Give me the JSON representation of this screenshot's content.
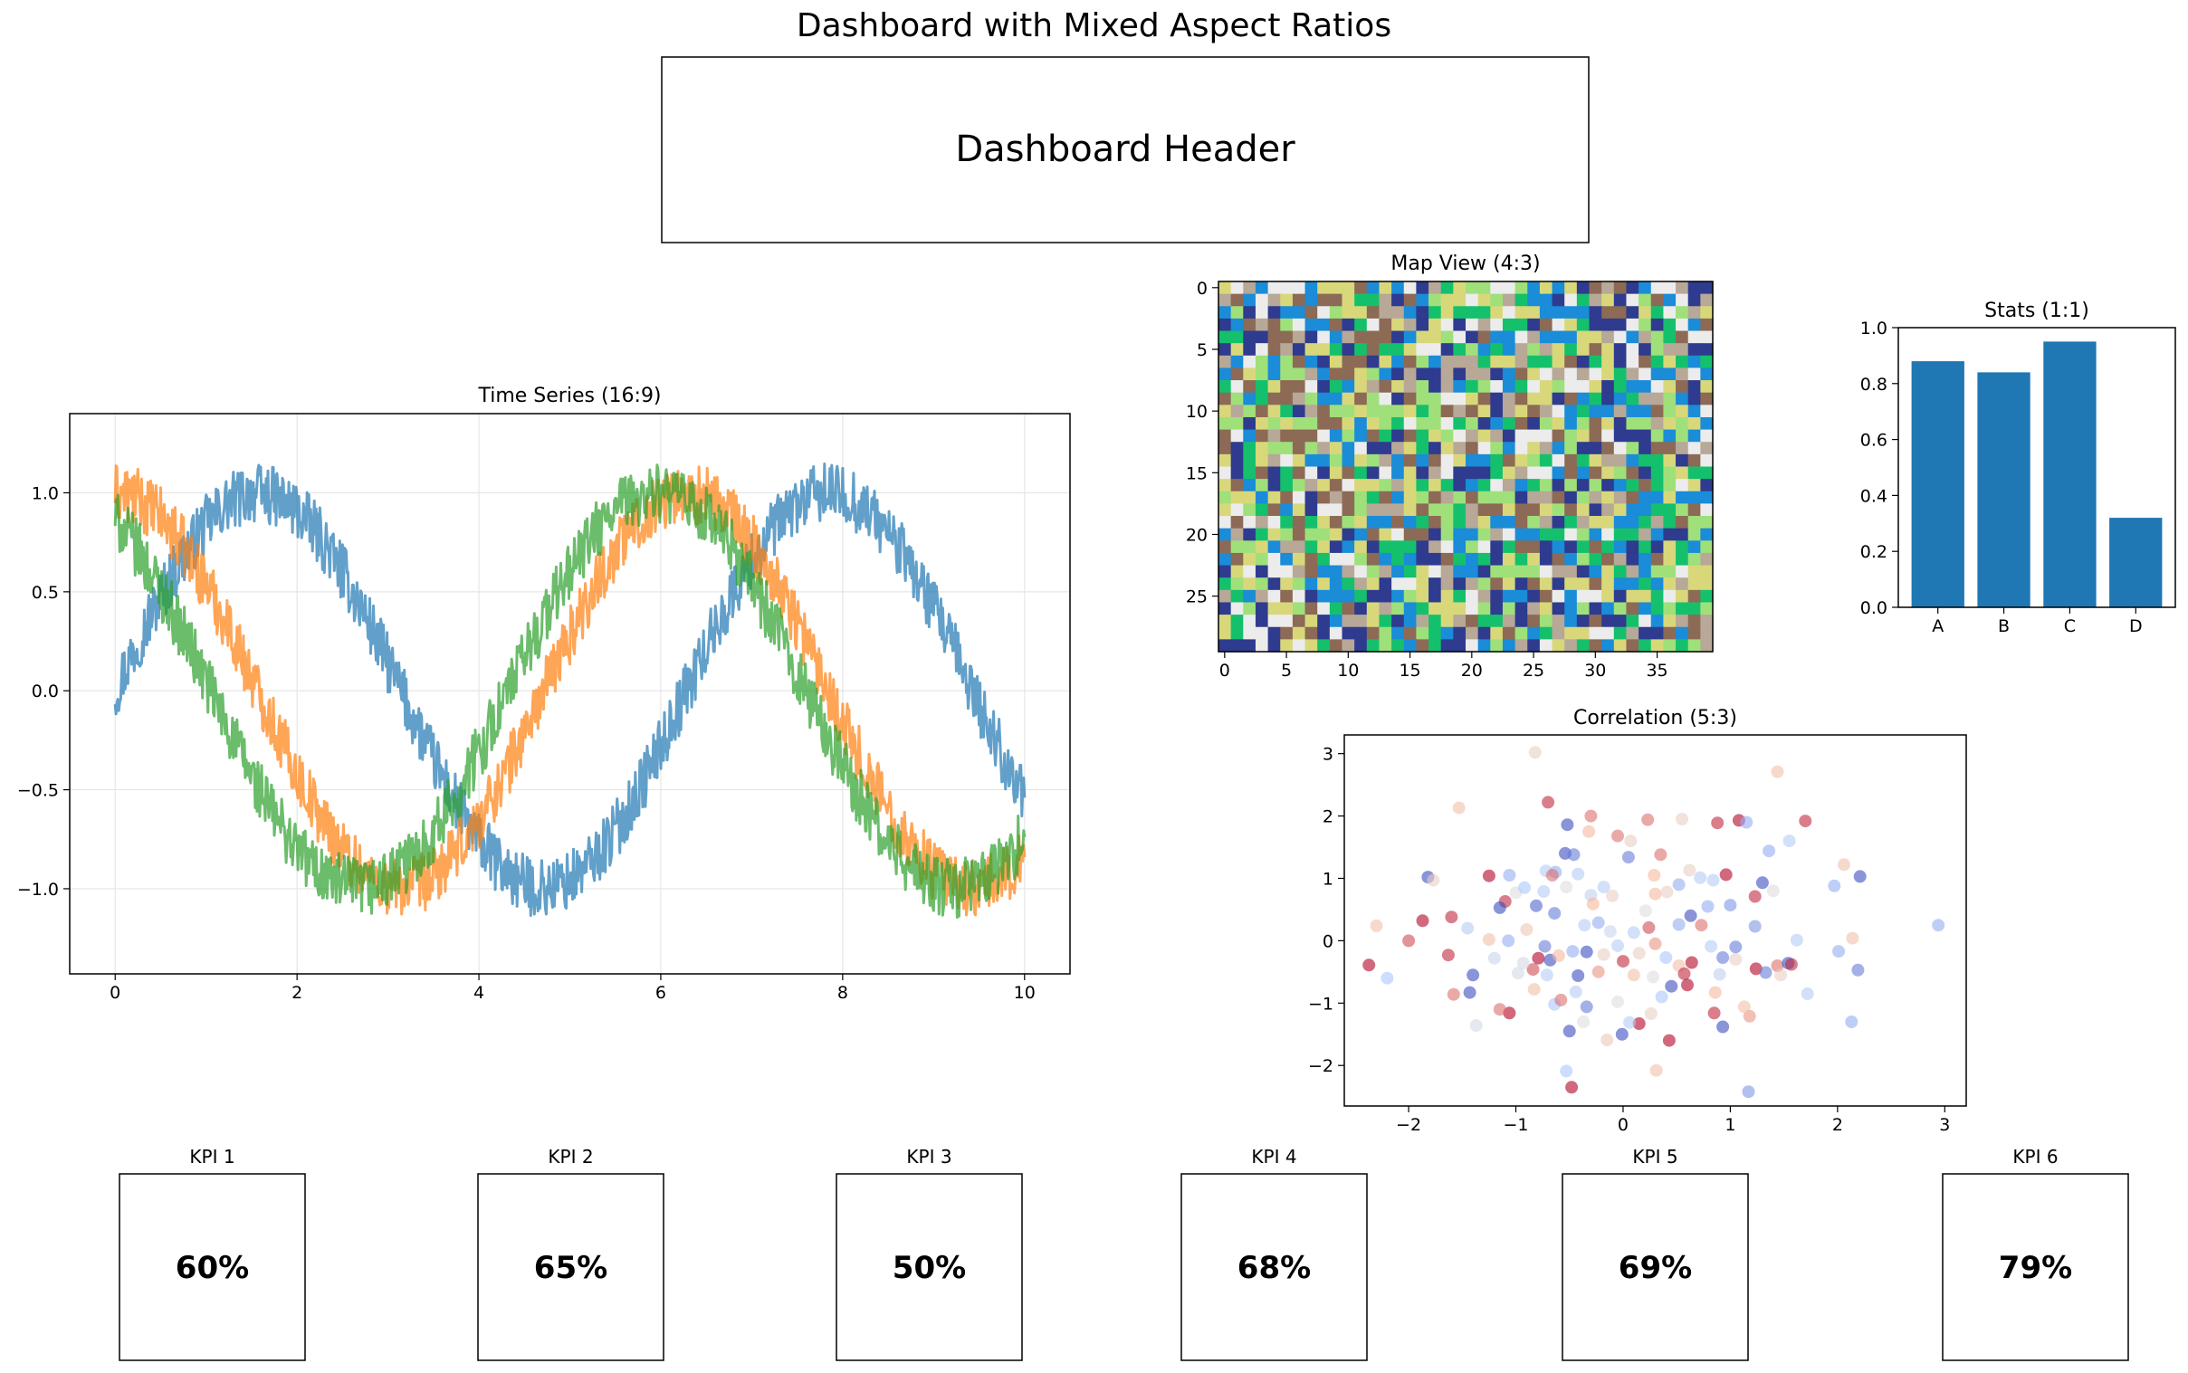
{
  "page_title": "Dashboard with Mixed Aspect Ratios",
  "header_text": "Dashboard Header",
  "colors": {
    "series": [
      "#1f77b4",
      "#ff7f0e",
      "#2ca02c"
    ],
    "bar": "#1f77b4",
    "grid": "#e6e6e6",
    "frame": "#000000",
    "heatmap_palette": [
      "#2e3b8f",
      "#1a8cd8",
      "#15c06c",
      "#9fe07a",
      "#d8d87a",
      "#8c6a55",
      "#b7a897",
      "#ececec"
    ],
    "scatter_colormap": [
      "#3b4cc0",
      "#aac7fd",
      "#dddddd",
      "#f7b89c",
      "#b40426"
    ]
  },
  "chart_data": [
    {
      "id": "time_series",
      "type": "line",
      "title": "Time Series (16:9)",
      "xlim": [
        -0.5,
        10.5
      ],
      "ylim": [
        -1.43,
        1.4
      ],
      "xticks": [
        0,
        2,
        4,
        6,
        8,
        10
      ],
      "yticks": [
        -1.0,
        -0.5,
        0.0,
        0.5,
        1.0
      ],
      "ytick_labels": [
        "−1.0",
        "−0.5",
        "0.0",
        "0.5",
        "1.0"
      ],
      "grid": true,
      "x": [
        0,
        0.25,
        0.5,
        0.75,
        1,
        1.25,
        1.5,
        1.75,
        2,
        2.25,
        2.5,
        2.75,
        3,
        3.25,
        3.5,
        3.75,
        4,
        4.25,
        4.5,
        4.75,
        5,
        5.25,
        5.5,
        5.75,
        6,
        6.25,
        6.5,
        6.75,
        7,
        7.25,
        7.5,
        7.75,
        8,
        8.25,
        8.5,
        8.75,
        9,
        9.25,
        9.5,
        9.75,
        10
      ],
      "series": [
        {
          "values": [
            0.0,
            0.25,
            0.48,
            0.68,
            0.84,
            0.95,
            1.0,
            0.98,
            0.91,
            0.78,
            0.6,
            0.38,
            0.14,
            -0.11,
            -0.35,
            -0.57,
            -0.76,
            -0.9,
            -0.98,
            -1.0,
            -0.96,
            -0.86,
            -0.71,
            -0.51,
            -0.28,
            -0.03,
            0.22,
            0.45,
            0.66,
            0.82,
            0.94,
            1.0,
            0.99,
            0.92,
            0.8,
            0.63,
            0.41,
            0.18,
            -0.08,
            -0.32,
            -0.54
          ],
          "noise": 0.1,
          "alpha": 0.7
        },
        {
          "values": [
            1.0,
            0.97,
            0.88,
            0.73,
            0.54,
            0.32,
            0.07,
            -0.18,
            -0.42,
            -0.63,
            -0.8,
            -0.92,
            -0.99,
            -0.99,
            -0.94,
            -0.82,
            -0.65,
            -0.45,
            -0.21,
            0.04,
            0.28,
            0.51,
            0.71,
            0.86,
            0.96,
            1.0,
            0.98,
            0.89,
            0.75,
            0.57,
            0.35,
            0.1,
            -0.15,
            -0.39,
            -0.6,
            -0.78,
            -0.91,
            -0.98,
            -1.0,
            -0.95,
            -0.84
          ],
          "noise": 0.1,
          "alpha": 0.7
        },
        {
          "values": [
            0.87,
            0.71,
            0.51,
            0.29,
            0.05,
            -0.2,
            -0.43,
            -0.63,
            -0.8,
            -0.92,
            -0.98,
            -1.0,
            -0.96,
            -0.86,
            -0.72,
            -0.53,
            -0.31,
            -0.07,
            0.17,
            0.4,
            0.61,
            0.78,
            0.91,
            0.98,
            1.0,
            0.96,
            0.88,
            0.74,
            0.55,
            0.33,
            0.09,
            -0.15,
            -0.38,
            -0.59,
            -0.77,
            -0.9,
            -0.98,
            -1.0,
            -0.97,
            -0.88,
            -0.74
          ],
          "noise": 0.1,
          "alpha": 0.7
        }
      ]
    },
    {
      "id": "map_view",
      "type": "heatmap",
      "title": "Map View (4:3)",
      "rows": 30,
      "cols": 40,
      "xticks": [
        0,
        5,
        10,
        15,
        20,
        25,
        30,
        35
      ],
      "yticks": [
        0,
        5,
        10,
        15,
        20,
        25
      ]
    },
    {
      "id": "stats",
      "type": "bar",
      "title": "Stats (1:1)",
      "categories": [
        "A",
        "B",
        "C",
        "D"
      ],
      "values": [
        0.88,
        0.84,
        0.95,
        0.32
      ],
      "ylim": [
        0,
        1.0
      ],
      "yticks": [
        "0.0",
        "0.2",
        "0.4",
        "0.6",
        "0.8",
        "1.0"
      ]
    },
    {
      "id": "correlation",
      "type": "scatter",
      "title": "Correlation (5:3)",
      "xlim": [
        -2.6,
        3.2
      ],
      "ylim": [
        -2.65,
        3.3
      ],
      "xticks": [
        -2,
        -1,
        0,
        1,
        2,
        3
      ],
      "xtick_labels": [
        "−2",
        "−1",
        "0",
        "1",
        "2",
        "3"
      ],
      "yticks": [
        -2,
        -1,
        0,
        1,
        2,
        3
      ],
      "ytick_labels": [
        "−2",
        "−1",
        "0",
        "1",
        "2",
        "3"
      ],
      "points": [
        [
          -0.82,
          3.02,
          0.6
        ],
        [
          1.44,
          2.71,
          0.7
        ],
        [
          -1.53,
          2.13,
          0.7
        ],
        [
          -0.7,
          2.22,
          0.95
        ],
        [
          -0.3,
          2.0,
          0.85
        ],
        [
          0.23,
          1.94,
          0.85
        ],
        [
          0.55,
          1.95,
          0.6
        ],
        [
          1.08,
          1.93,
          1.0
        ],
        [
          0.88,
          1.89,
          0.95
        ],
        [
          1.15,
          1.9,
          0.2
        ],
        [
          1.7,
          1.92,
          0.95
        ],
        [
          -0.32,
          1.75,
          0.75
        ],
        [
          -0.52,
          1.86,
          0.0
        ],
        [
          -0.05,
          1.68,
          0.85
        ],
        [
          0.07,
          1.6,
          0.6
        ],
        [
          1.55,
          1.6,
          0.3
        ],
        [
          1.36,
          1.44,
          0.2
        ],
        [
          2.06,
          1.22,
          0.7
        ],
        [
          2.21,
          1.03,
          0.0
        ],
        [
          1.97,
          0.88,
          0.2
        ],
        [
          -1.82,
          1.02,
          0.0
        ],
        [
          -1.77,
          0.97,
          0.6
        ],
        [
          -1.25,
          1.04,
          1.0
        ],
        [
          -1.06,
          1.05,
          0.2
        ],
        [
          -0.72,
          1.12,
          0.3
        ],
        [
          -0.54,
          1.4,
          0.0
        ],
        [
          -0.46,
          1.38,
          0.1
        ],
        [
          -0.63,
          1.1,
          0.2
        ],
        [
          -0.42,
          1.07,
          0.3
        ],
        [
          -0.66,
          1.05,
          0.85
        ],
        [
          0.05,
          1.34,
          0.1
        ],
        [
          0.35,
          1.38,
          0.85
        ],
        [
          0.29,
          1.05,
          0.75
        ],
        [
          0.52,
          0.9,
          0.2
        ],
        [
          0.84,
          0.97,
          0.3
        ],
        [
          0.62,
          1.13,
          0.6
        ],
        [
          0.96,
          1.06,
          1.0
        ],
        [
          0.72,
          1.01,
          0.3
        ],
        [
          1.3,
          0.93,
          0.0
        ],
        [
          1.4,
          0.8,
          0.5
        ],
        [
          1.23,
          0.71,
          0.95
        ],
        [
          -1.0,
          0.77,
          0.5
        ],
        [
          -0.92,
          0.85,
          0.25
        ],
        [
          -0.74,
          0.79,
          0.3
        ],
        [
          -0.53,
          0.86,
          0.5
        ],
        [
          -0.18,
          0.86,
          0.3
        ],
        [
          -0.1,
          0.72,
          0.6
        ],
        [
          0.3,
          0.75,
          0.75
        ],
        [
          0.41,
          0.78,
          0.6
        ],
        [
          1.0,
          0.57,
          0.15
        ],
        [
          0.21,
          0.48,
          0.5
        ],
        [
          -1.1,
          0.63,
          0.95
        ],
        [
          -1.15,
          0.53,
          0.0
        ],
        [
          -0.3,
          0.73,
          0.35
        ],
        [
          -1.6,
          0.38,
          0.95
        ],
        [
          -1.45,
          0.2,
          0.3
        ],
        [
          -1.87,
          0.32,
          1.0
        ],
        [
          -2.0,
          0.0,
          0.9
        ],
        [
          -2.3,
          0.24,
          0.7
        ],
        [
          -2.2,
          -0.6,
          0.25
        ],
        [
          -2.37,
          -0.39,
          1.0
        ],
        [
          -1.4,
          -0.55,
          0.0
        ],
        [
          -1.58,
          -0.86,
          0.85
        ],
        [
          -1.43,
          -0.83,
          0.0
        ],
        [
          -1.63,
          -0.23,
          0.95
        ],
        [
          -1.25,
          0.02,
          0.7
        ],
        [
          -1.07,
          0.0,
          0.2
        ],
        [
          -1.2,
          -0.28,
          0.4
        ],
        [
          -0.98,
          -0.52,
          0.45
        ],
        [
          -0.84,
          -0.46,
          0.9
        ],
        [
          -0.79,
          -0.28,
          1.0
        ],
        [
          -0.68,
          -0.31,
          0.0
        ],
        [
          -0.6,
          -0.24,
          0.75
        ],
        [
          -0.73,
          -0.09,
          0.1
        ],
        [
          -0.47,
          -0.17,
          0.2
        ],
        [
          -0.34,
          -0.18,
          0.0
        ],
        [
          -0.18,
          -0.22,
          0.6
        ],
        [
          -0.05,
          -0.08,
          0.3
        ],
        [
          0.0,
          -0.33,
          0.95
        ],
        [
          0.15,
          -0.2,
          0.6
        ],
        [
          0.3,
          -0.05,
          0.8
        ],
        [
          0.4,
          -0.27,
          0.25
        ],
        [
          0.52,
          -0.4,
          0.7
        ],
        [
          0.57,
          -0.53,
          0.95
        ],
        [
          0.64,
          -0.35,
          1.0
        ],
        [
          0.82,
          -0.09,
          0.3
        ],
        [
          0.93,
          -0.27,
          0.1
        ],
        [
          1.05,
          -0.3,
          0.6
        ],
        [
          1.24,
          -0.45,
          1.0
        ],
        [
          1.33,
          -0.51,
          0.1
        ],
        [
          1.44,
          -0.4,
          0.85
        ],
        [
          1.54,
          -0.36,
          0.0
        ],
        [
          1.57,
          -0.38,
          0.95
        ],
        [
          2.01,
          -0.17,
          0.2
        ],
        [
          2.19,
          -0.47,
          0.1
        ],
        [
          1.72,
          -0.85,
          0.3
        ],
        [
          2.13,
          -1.3,
          0.2
        ],
        [
          1.18,
          -1.21,
          0.8
        ],
        [
          0.86,
          -0.83,
          0.75
        ],
        [
          0.6,
          -0.71,
          1.0
        ],
        [
          0.45,
          -0.73,
          0.0
        ],
        [
          0.36,
          -0.9,
          0.25
        ],
        [
          0.26,
          -1.17,
          0.6
        ],
        [
          0.15,
          -1.33,
          1.0
        ],
        [
          0.06,
          -1.31,
          0.3
        ],
        [
          -0.01,
          -1.5,
          0.0
        ],
        [
          -0.15,
          -1.59,
          0.65
        ],
        [
          -0.37,
          -1.3,
          0.5
        ],
        [
          -0.5,
          -1.45,
          0.0
        ],
        [
          -0.64,
          -1.02,
          0.25
        ],
        [
          -0.83,
          -0.78,
          0.7
        ],
        [
          -1.06,
          -1.16,
          1.0
        ],
        [
          -1.15,
          -1.1,
          0.85
        ],
        [
          -1.37,
          -1.36,
          0.45
        ],
        [
          -0.44,
          -0.82,
          0.3
        ],
        [
          -0.58,
          -0.95,
          0.85
        ],
        [
          -0.34,
          -1.06,
          0.1
        ],
        [
          -0.05,
          -0.98,
          0.5
        ],
        [
          0.43,
          -1.6,
          1.0
        ],
        [
          0.31,
          -2.08,
          0.7
        ],
        [
          -0.48,
          -2.35,
          1.0
        ],
        [
          -0.53,
          -2.09,
          0.25
        ],
        [
          1.17,
          -2.42,
          0.15
        ],
        [
          0.93,
          -1.38,
          0.0
        ],
        [
          0.85,
          -1.16,
          0.95
        ],
        [
          1.13,
          -1.06,
          0.7
        ],
        [
          1.23,
          0.23,
          0.15
        ],
        [
          0.63,
          0.4,
          0.0
        ],
        [
          0.52,
          0.26,
          0.2
        ],
        [
          0.24,
          0.21,
          0.9
        ],
        [
          0.1,
          0.13,
          0.3
        ],
        [
          -0.12,
          0.15,
          0.4
        ],
        [
          -0.23,
          0.29,
          0.2
        ],
        [
          -0.36,
          0.25,
          0.3
        ],
        [
          -0.64,
          0.44,
          0.1
        ],
        [
          -0.81,
          0.56,
          0.05
        ],
        [
          -0.93,
          -0.36,
          0.45
        ],
        [
          -0.42,
          -0.56,
          0.0
        ],
        [
          0.1,
          -0.55,
          0.7
        ],
        [
          -0.23,
          -0.5,
          0.8
        ],
        [
          1.47,
          -0.55,
          0.6
        ],
        [
          1.62,
          0.01,
          0.3
        ],
        [
          2.14,
          0.04,
          0.7
        ],
        [
          2.94,
          0.25,
          0.2
        ],
        [
          -0.71,
          -0.55,
          0.3
        ],
        [
          0.73,
          0.25,
          0.85
        ],
        [
          0.9,
          -0.54,
          0.35
        ],
        [
          1.05,
          -0.1,
          0.1
        ],
        [
          0.28,
          -0.58,
          0.5
        ],
        [
          -0.9,
          0.18,
          0.65
        ],
        [
          0.79,
          0.55,
          0.2
        ],
        [
          -0.28,
          0.59,
          0.75
        ]
      ]
    }
  ],
  "kpis": [
    {
      "label": "KPI 1",
      "value": "60%"
    },
    {
      "label": "KPI 2",
      "value": "65%"
    },
    {
      "label": "KPI 3",
      "value": "50%"
    },
    {
      "label": "KPI 4",
      "value": "68%"
    },
    {
      "label": "KPI 5",
      "value": "69%"
    },
    {
      "label": "KPI 6",
      "value": "79%"
    }
  ]
}
